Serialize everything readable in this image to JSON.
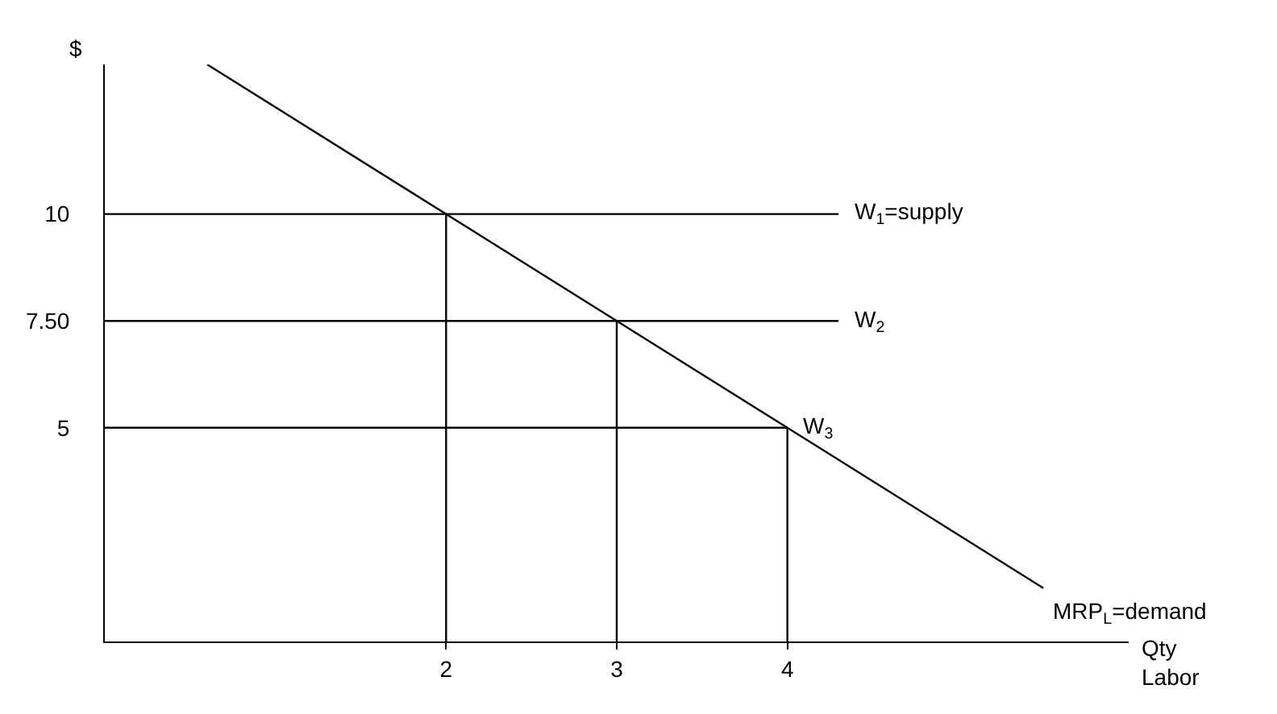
{
  "chart_data": {
    "type": "line",
    "xlabel": "Qty\nLabor",
    "ylabel": "$",
    "xlim": [
      0,
      6
    ],
    "ylim": [
      0,
      13.5
    ],
    "xticks": [
      2,
      3,
      4
    ],
    "yticks": [
      5,
      {
        "value": 7.5,
        "label": "7.50"
      },
      10
    ],
    "grid": false,
    "legend": false,
    "marker": "none",
    "line_style": "solid",
    "series": [
      {
        "name": "MRP$_{L}$=demand",
        "color": "#000000",
        "x": [
          0.6,
          5.5
        ],
        "values": [
          13.5,
          1.25
        ]
      },
      {
        "name": "W$_{1}$=supply",
        "color": "#000000",
        "x": [
          0,
          4.3
        ],
        "values": [
          10,
          10
        ]
      },
      {
        "name": "W$_{2}$",
        "color": "#000000",
        "x": [
          0,
          4.3
        ],
        "values": [
          7.5,
          7.5
        ]
      },
      {
        "name": "W$_{3}$",
        "color": "#000000",
        "x": [
          0,
          4
        ],
        "values": [
          5,
          5
        ]
      },
      {
        "color": "#000000",
        "x": [
          2,
          2
        ],
        "values": [
          0,
          10
        ]
      },
      {
        "color": "#000000",
        "x": [
          3,
          3
        ],
        "values": [
          0,
          7.5
        ]
      },
      {
        "color": "#000000",
        "x": [
          4,
          4
        ],
        "values": [
          0,
          5
        ]
      }
    ]
  }
}
